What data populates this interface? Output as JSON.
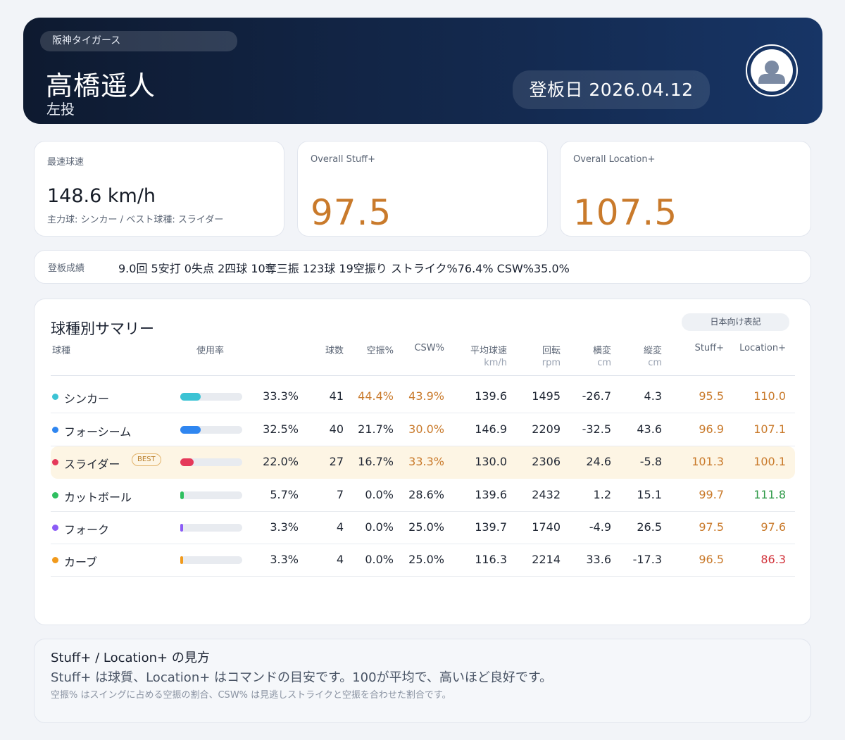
{
  "header": {
    "team": "阪神タイガース",
    "name": "高橋遥人",
    "hand": "左投",
    "date": "登板日 2026.04.12",
    "avatar_icon": "user-silhouette-icon"
  },
  "stats": {
    "velo_label": "最速球速",
    "velo_value": "148.6 km/h",
    "velo_sub": "主力球: シンカー / ベスト球種: スライダー",
    "stuff_label": "Overall Stuff+",
    "stuff_value": "97.5",
    "location_label": "Overall Location+",
    "location_value": "107.5"
  },
  "record": {
    "label": "登板成績",
    "text": "9.0回 5安打 0失点 2四球 10奪三振 123球 19空振り ストライク%76.4% CSW%35.0%"
  },
  "summary": {
    "title": "球種別サマリー",
    "jp_button": "日本向け表記",
    "headers": {
      "pitch": "球種",
      "usage": "使用率",
      "count": "球数",
      "whiff": "空振%",
      "csw": "CSW%",
      "velo": "平均球速",
      "velo_unit": "km/h",
      "spin": "回転",
      "spin_unit": "rpm",
      "hmov": "横変",
      "hmov_unit": "cm",
      "vmov": "縦変",
      "vmov_unit": "cm",
      "stuff": "Stuff+",
      "location": "Location+"
    },
    "best_badge": "BEST",
    "rows": [
      {
        "name": "シンカー",
        "color": "#3cc3d4",
        "usage_frac": 0.333,
        "usage": "33.3%",
        "count": "41",
        "whiff": "44.4%",
        "whiff_tone": "orange",
        "csw": "43.9%",
        "csw_tone": "orange",
        "velo": "139.6",
        "spin": "1495",
        "hmov": "-26.7",
        "vmov": "4.3",
        "stuff": "95.5",
        "stuff_tone": "orange",
        "location": "110.0",
        "location_tone": "orange",
        "best": false
      },
      {
        "name": "フォーシーム",
        "color": "#2f86f0",
        "usage_frac": 0.325,
        "usage": "32.5%",
        "count": "40",
        "whiff": "21.7%",
        "whiff_tone": "",
        "csw": "30.0%",
        "csw_tone": "orange",
        "velo": "146.9",
        "spin": "2209",
        "hmov": "-32.5",
        "vmov": "43.6",
        "stuff": "96.9",
        "stuff_tone": "orange",
        "location": "107.1",
        "location_tone": "orange",
        "best": false
      },
      {
        "name": "スライダー",
        "color": "#e5395a",
        "usage_frac": 0.22,
        "usage": "22.0%",
        "count": "27",
        "whiff": "16.7%",
        "whiff_tone": "",
        "csw": "33.3%",
        "csw_tone": "orange",
        "velo": "130.0",
        "spin": "2306",
        "hmov": "24.6",
        "vmov": "-5.8",
        "stuff": "101.3",
        "stuff_tone": "orange",
        "location": "100.1",
        "location_tone": "orange",
        "best": true
      },
      {
        "name": "カットボール",
        "color": "#2fbf60",
        "usage_frac": 0.057,
        "usage": "5.7%",
        "count": "7",
        "whiff": "0.0%",
        "whiff_tone": "",
        "csw": "28.6%",
        "csw_tone": "",
        "velo": "139.6",
        "spin": "2432",
        "hmov": "1.2",
        "vmov": "15.1",
        "stuff": "99.7",
        "stuff_tone": "orange",
        "location": "111.8",
        "location_tone": "green",
        "best": false
      },
      {
        "name": "フォーク",
        "color": "#8b5cf6",
        "usage_frac": 0.033,
        "usage": "3.3%",
        "count": "4",
        "whiff": "0.0%",
        "whiff_tone": "",
        "csw": "25.0%",
        "csw_tone": "",
        "velo": "139.7",
        "spin": "1740",
        "hmov": "-4.9",
        "vmov": "26.5",
        "stuff": "97.5",
        "stuff_tone": "orange",
        "location": "97.6",
        "location_tone": "orange",
        "best": false
      },
      {
        "name": "カーブ",
        "color": "#f19a1c",
        "usage_frac": 0.033,
        "usage": "3.3%",
        "count": "4",
        "whiff": "0.0%",
        "whiff_tone": "",
        "csw": "25.0%",
        "csw_tone": "",
        "velo": "116.3",
        "spin": "2214",
        "hmov": "33.6",
        "vmov": "-17.3",
        "stuff": "96.5",
        "stuff_tone": "orange",
        "location": "86.3",
        "location_tone": "red",
        "best": false
      }
    ]
  },
  "explain": {
    "title": "Stuff+ / Location+ の見方",
    "main": "Stuff+ は球質、Location+ はコマンドの目安です。100が平均で、高いほど良好です。",
    "note": "空振% はスイングに占める空振の割合、CSW% は見逃しストライクと空振を合わせた割合です。"
  }
}
